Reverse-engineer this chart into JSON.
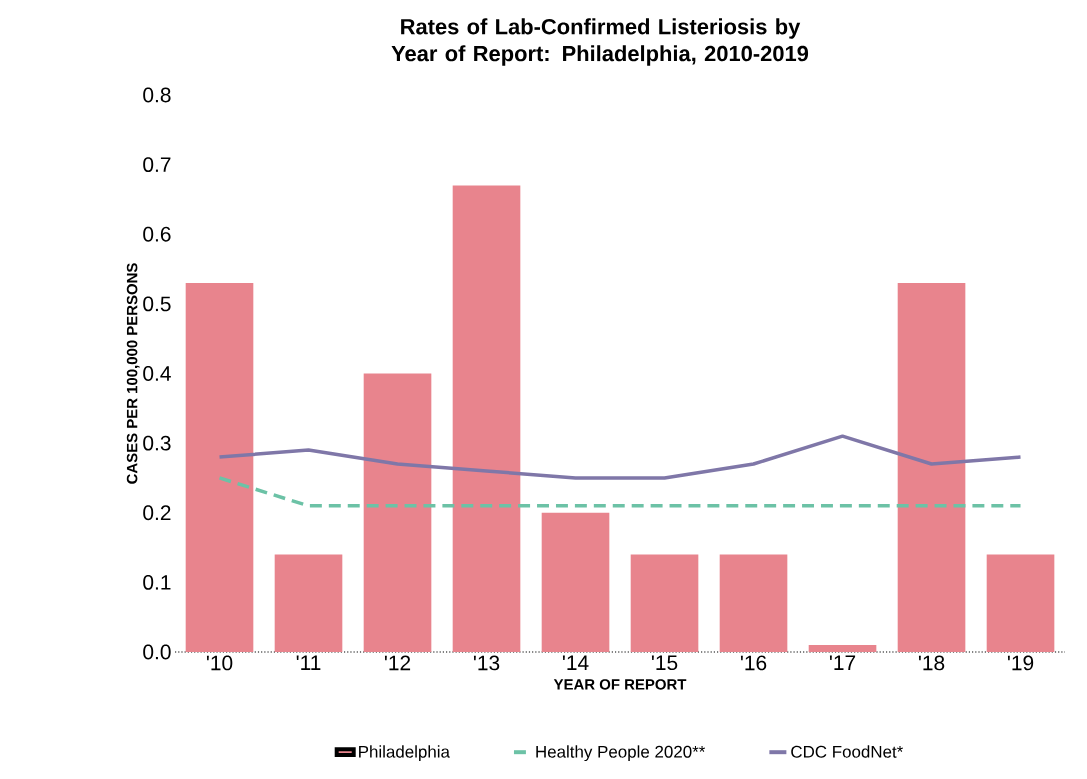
{
  "chart_data": {
    "type": "bar",
    "title": "Rates of Lab-Confirmed Listeriosis by Year of Report: Philadelphia, 2010-2019",
    "xlabel": "YEAR OF REPORT",
    "ylabel": "CASES PER 100,000 PERSONS",
    "categories": [
      "'10",
      "'11",
      "'12",
      "'13",
      "'14",
      "'15",
      "'16",
      "'17",
      "'18",
      "'19"
    ],
    "series": [
      {
        "name": "Philadelphia",
        "color": "#e8848d",
        "values": [
          0.53,
          0.14,
          0.4,
          0.67,
          0.2,
          0.14,
          0.14,
          0.01,
          0.53,
          0.14
        ]
      },
      {
        "name": "Healthy People 2020**",
        "type": "line",
        "line_style": "dashed",
        "color": "#6cc2a6",
        "values": [
          0.25,
          0.21,
          0.21,
          0.21,
          0.21,
          0.21,
          0.21,
          0.21,
          0.21,
          0.21
        ]
      },
      {
        "name": "CDC FoodNet*",
        "type": "line",
        "line_style": "solid",
        "color": "#7f77a8",
        "values": [
          0.28,
          0.29,
          0.27,
          0.26,
          0.25,
          0.25,
          0.27,
          0.31,
          0.27,
          0.28
        ]
      }
    ],
    "ylim": [
      0,
      0.8
    ],
    "yticks": [
      {
        "value": 0,
        "label": "0.0"
      },
      0.1,
      0.2,
      0.3,
      0.4,
      0.5,
      0.6,
      0.7,
      0.8
    ],
    "legend": "bottom"
  }
}
